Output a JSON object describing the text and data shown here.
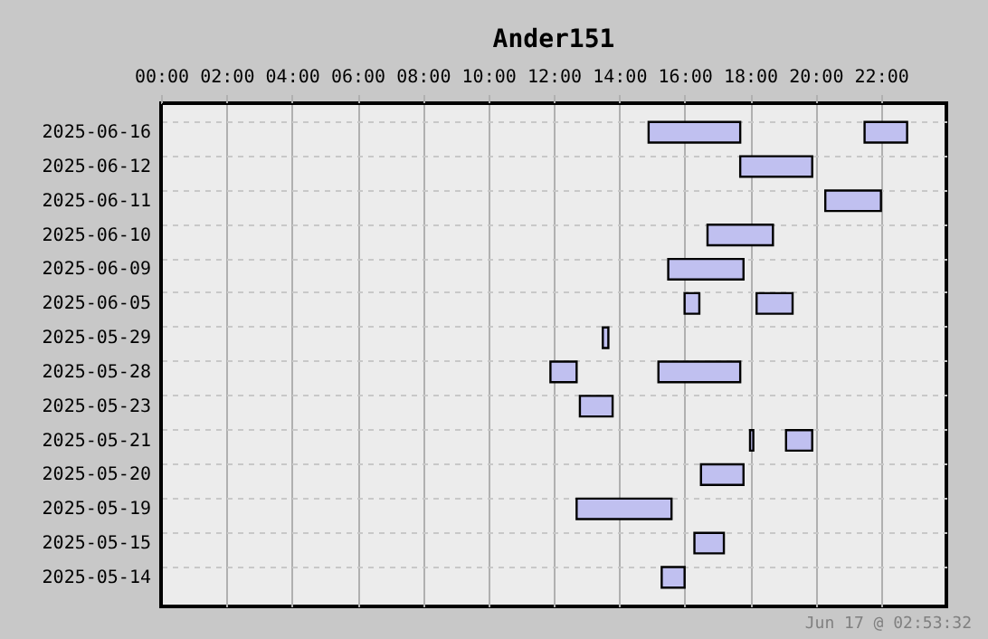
{
  "chart_data": {
    "type": "bar",
    "orientation": "horizontal",
    "title": "Ander151",
    "categories": [
      "2025-06-16",
      "2025-06-12",
      "2025-06-11",
      "2025-06-10",
      "2025-06-09",
      "2025-06-05",
      "2025-05-29",
      "2025-05-28",
      "2025-05-23",
      "2025-05-21",
      "2025-05-20",
      "2025-05-19",
      "2025-05-15",
      "2025-05-14"
    ],
    "series": [
      {
        "color": "#c0c0f0",
        "base": [
          14.9,
          17.7,
          20.3,
          16.7,
          15.5,
          16.0,
          13.5,
          11.9,
          12.8,
          18.0,
          16.5,
          12.7,
          16.3,
          15.3
        ],
        "values": [
          2.8,
          2.2,
          1.7,
          2.0,
          2.3,
          0.45,
          0.17,
          0.8,
          1.0,
          0.1,
          1.3,
          2.9,
          0.9,
          0.7
        ]
      },
      {
        "color": "#c0c0f0",
        "base": [
          21.5,
          null,
          null,
          null,
          null,
          18.2,
          null,
          15.2,
          null,
          19.1,
          null,
          null,
          null,
          null
        ],
        "values": [
          1.3,
          null,
          null,
          null,
          null,
          1.1,
          null,
          2.5,
          null,
          0.8,
          null,
          null,
          null,
          null
        ]
      }
    ],
    "xlim": [
      0,
      24
    ],
    "xticks": [
      {
        "value": 0,
        "label": "00:00"
      },
      {
        "value": 2,
        "label": "02:00"
      },
      {
        "value": 4,
        "label": "04:00"
      },
      {
        "value": 6,
        "label": "06:00"
      },
      {
        "value": 8,
        "label": "08:00"
      },
      {
        "value": 10,
        "label": "10:00"
      },
      {
        "value": 12,
        "label": "12:00"
      },
      {
        "value": 14,
        "label": "14:00"
      },
      {
        "value": 16,
        "label": "16:00"
      },
      {
        "value": 18,
        "label": "18:00"
      },
      {
        "value": 20,
        "label": "20:00"
      },
      {
        "value": 22,
        "label": "22:00"
      }
    ],
    "grid": true,
    "annotations": [
      "Jun 17 @ 02:53:32"
    ]
  }
}
